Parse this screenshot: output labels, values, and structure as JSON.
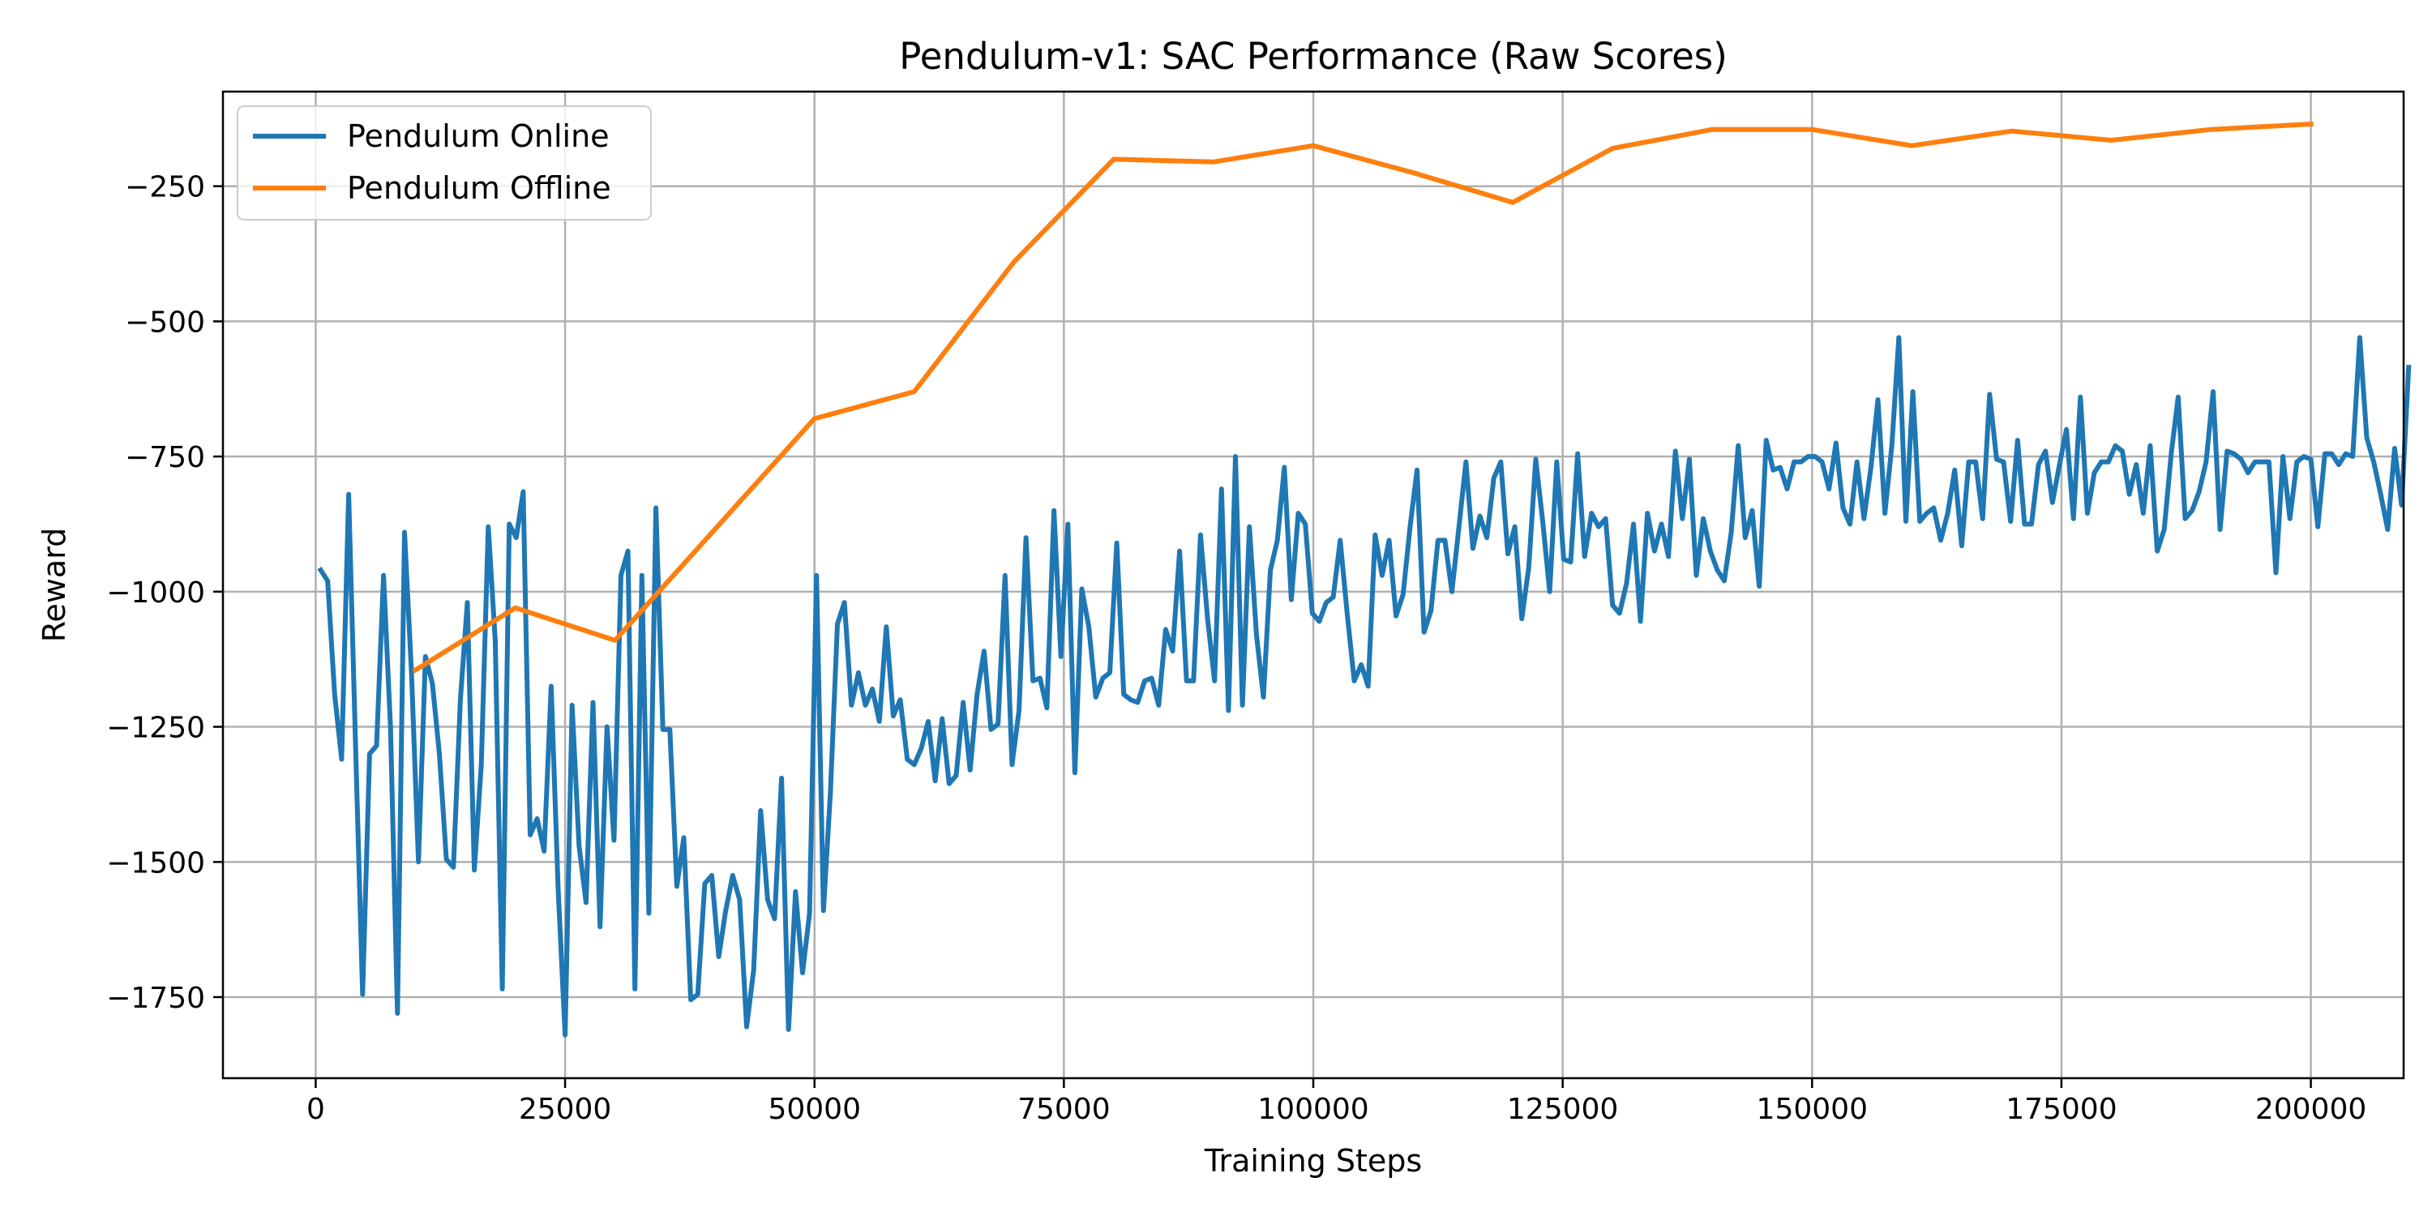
{
  "chart_data": {
    "type": "line",
    "title": "Pendulum-v1: SAC Performance (Raw Scores)",
    "xlabel": "Training Steps",
    "ylabel": "Reward",
    "xlim": [
      -9300,
      209300
    ],
    "ylim": [
      -1900,
      -75
    ],
    "xticks": [
      0,
      25000,
      50000,
      75000,
      100000,
      125000,
      150000,
      175000,
      200000
    ],
    "yticks": [
      -1750,
      -1500,
      -1250,
      -1000,
      -750,
      -500,
      -250
    ],
    "grid": true,
    "legend": "top-left",
    "colors": {
      "online": "#1f77b4",
      "offline": "#ff7f0e",
      "grid": "#b0b0b0",
      "axes": "#000000"
    },
    "series": [
      {
        "name": "Pendulum Online",
        "color": "#1f77b4",
        "x_start": 500,
        "x_step": 700,
        "values": [
          -960,
          -980,
          -1190,
          -1310,
          -820,
          -1290,
          -1745,
          -1300,
          -1285,
          -970,
          -1250,
          -1780,
          -890,
          -1150,
          -1500,
          -1120,
          -1170,
          -1300,
          -1495,
          -1510,
          -1200,
          -1020,
          -1515,
          -1320,
          -880,
          -1090,
          -1735,
          -875,
          -900,
          -815,
          -1450,
          -1420,
          -1480,
          -1175,
          -1550,
          -1820,
          -1210,
          -1470,
          -1575,
          -1205,
          -1620,
          -1250,
          -1460,
          -970,
          -925,
          -1735,
          -970,
          -1595,
          -845,
          -1255,
          -1255,
          -1545,
          -1455,
          -1755,
          -1745,
          -1540,
          -1525,
          -1675,
          -1590,
          -1525,
          -1570,
          -1805,
          -1700,
          -1405,
          -1570,
          -1605,
          -1345,
          -1810,
          -1555,
          -1705,
          -1595,
          -970,
          -1590,
          -1370,
          -1060,
          -1020,
          -1210,
          -1150,
          -1210,
          -1180,
          -1240,
          -1065,
          -1230,
          -1200,
          -1310,
          -1320,
          -1290,
          -1240,
          -1350,
          -1235,
          -1355,
          -1340,
          -1205,
          -1330,
          -1190,
          -1110,
          -1255,
          -1245,
          -970,
          -1320,
          -1220,
          -900,
          -1165,
          -1160,
          -1215,
          -850,
          -1120,
          -875,
          -1335,
          -995,
          -1065,
          -1195,
          -1160,
          -1150,
          -910,
          -1190,
          -1200,
          -1205,
          -1165,
          -1160,
          -1210,
          -1070,
          -1110,
          -925,
          -1165,
          -1165,
          -895,
          -1050,
          -1165,
          -810,
          -1220,
          -750,
          -1210,
          -880,
          -1080,
          -1195,
          -960,
          -905,
          -770,
          -1015,
          -855,
          -875,
          -1040,
          -1055,
          -1020,
          -1010,
          -905,
          -1040,
          -1165,
          -1135,
          -1175,
          -895,
          -970,
          -905,
          -1045,
          -1005,
          -880,
          -775,
          -1075,
          -1035,
          -905,
          -905,
          -1000,
          -880,
          -760,
          -920,
          -860,
          -900,
          -790,
          -760,
          -930,
          -880,
          -1050,
          -955,
          -755,
          -870,
          -1000,
          -760,
          -940,
          -945,
          -745,
          -935,
          -855,
          -880,
          -865,
          -1025,
          -1040,
          -985,
          -875,
          -1055,
          -855,
          -925,
          -875,
          -935,
          -740,
          -865,
          -755,
          -970,
          -865,
          -925,
          -960,
          -980,
          -890,
          -730,
          -900,
          -850,
          -990,
          -720,
          -775,
          -770,
          -810,
          -760,
          -760,
          -750,
          -750,
          -760,
          -810,
          -725,
          -845,
          -875,
          -760,
          -865,
          -770,
          -645,
          -855,
          -730,
          -530,
          -870,
          -630,
          -870,
          -855,
          -845,
          -905,
          -855,
          -775,
          -915,
          -760,
          -760,
          -865,
          -635,
          -755,
          -760,
          -870,
          -720,
          -875,
          -875,
          -765,
          -740,
          -835,
          -765,
          -700,
          -865,
          -640,
          -855,
          -780,
          -760,
          -760,
          -730,
          -740,
          -820,
          -765,
          -855,
          -730,
          -925,
          -885,
          -745,
          -640,
          -865,
          -850,
          -815,
          -760,
          -630,
          -885,
          -740,
          -745,
          -755,
          -780,
          -760,
          -760,
          -760,
          -965,
          -750,
          -865,
          -760,
          -750,
          -755,
          -880,
          -745,
          -745,
          -765,
          -745,
          -750,
          -530,
          -715,
          -760,
          -820,
          -885,
          -735,
          -840,
          -585
        ]
      },
      {
        "name": "Pendulum Offline",
        "color": "#ff7f0e",
        "x": [
          10000,
          20000,
          30000,
          40000,
          50000,
          60000,
          70000,
          80000,
          90000,
          100000,
          110000,
          120000,
          130000,
          140000,
          150000,
          160000,
          170000,
          180000,
          190000,
          200000
        ],
        "values": [
          -1145,
          -1030,
          -1090,
          -885,
          -680,
          -630,
          -390,
          -200,
          -205,
          -175,
          -225,
          -280,
          -180,
          -145,
          -145,
          -175,
          -148,
          -165,
          -145,
          -135
        ]
      }
    ]
  }
}
